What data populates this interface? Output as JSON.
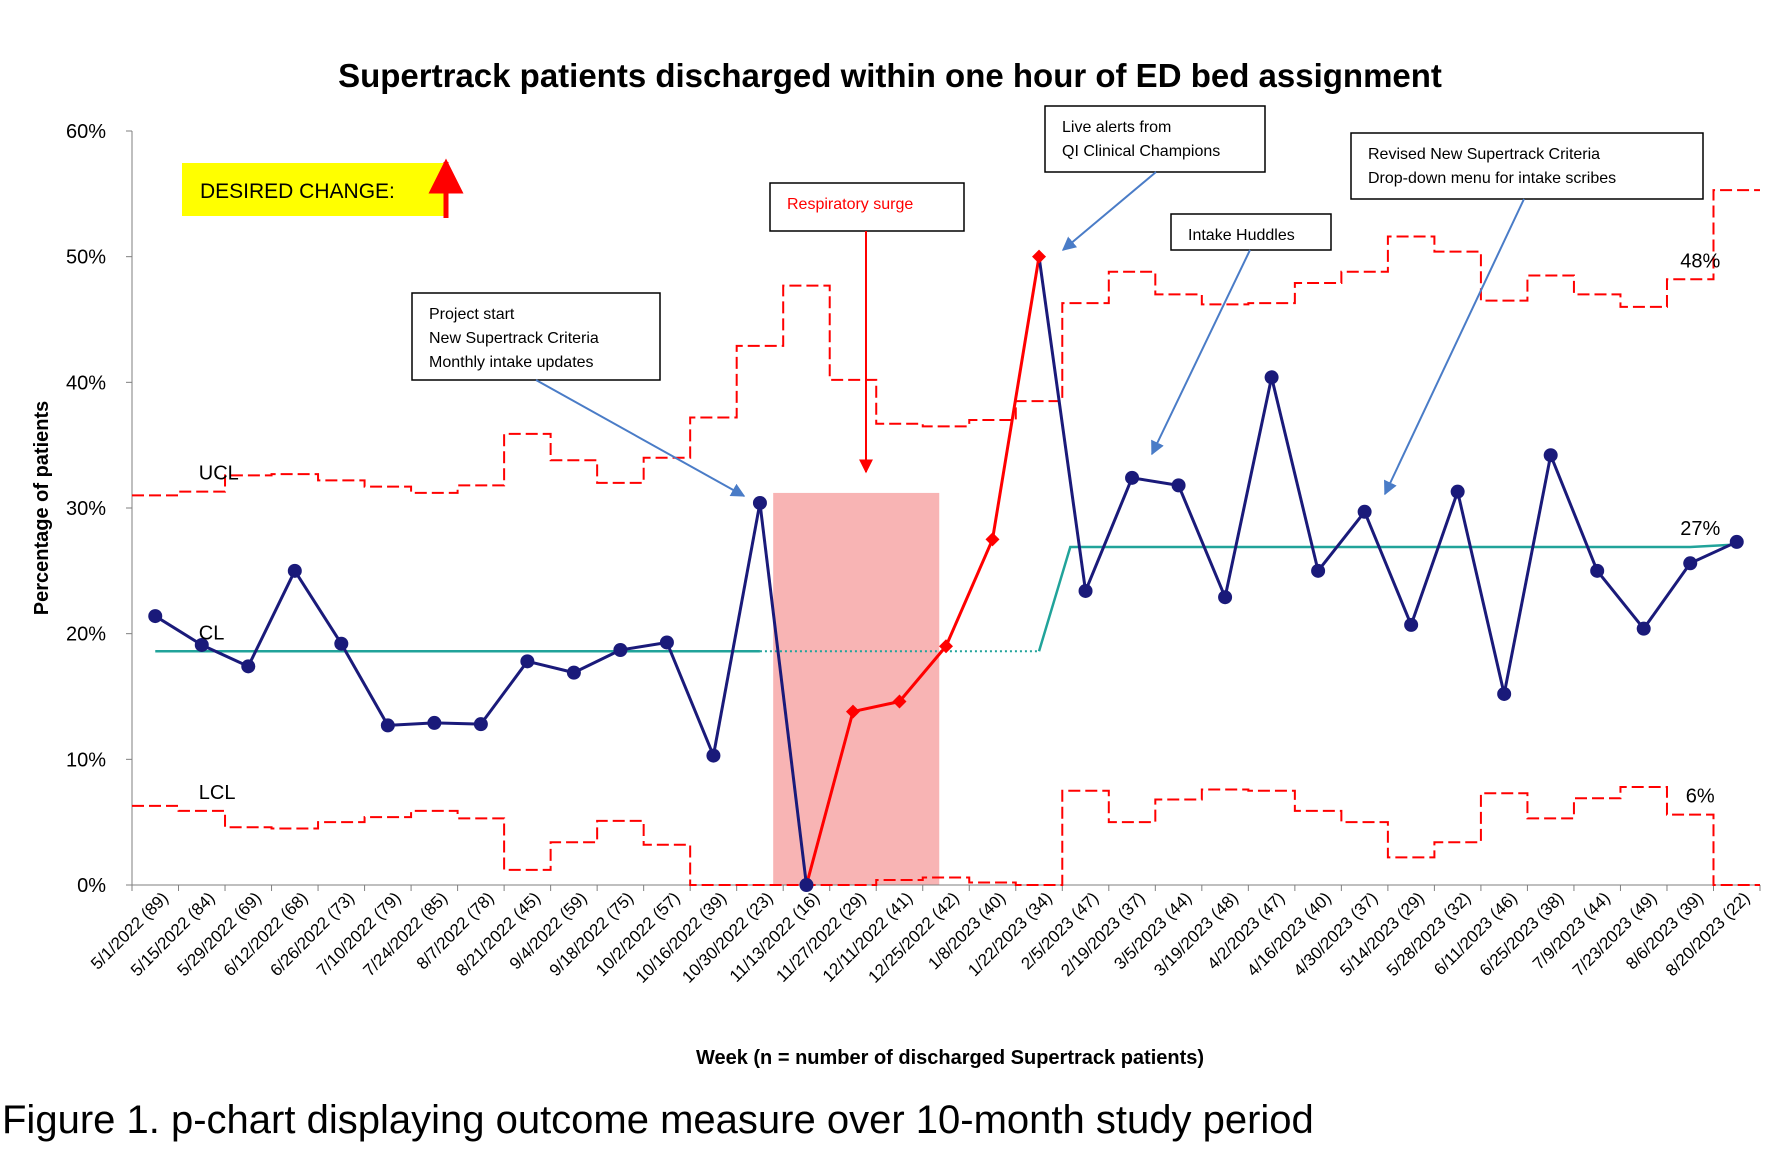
{
  "chart_data": {
    "type": "line",
    "title": "Supertrack patients discharged within one hour of ED bed assignment",
    "xlabel": "Week (n = number of discharged Supertrack patients)",
    "ylabel": "Percentage of patients",
    "ylim": [
      0,
      60
    ],
    "y_ticks": [
      "0%",
      "10%",
      "20%",
      "30%",
      "40%",
      "50%",
      "60%"
    ],
    "categories": [
      "5/1/2022 (89)",
      "5/15/2022 (84)",
      "5/29/2022 (69)",
      "6/12/2022 (68)",
      "6/26/2022 (73)",
      "7/10/2022 (79)",
      "7/24/2022 (85)",
      "8/7/2022 (78)",
      "8/21/2022 (45)",
      "9/4/2022 (59)",
      "9/18/2022 (75)",
      "10/2/2022 (57)",
      "10/16/2022 (39)",
      "10/30/2022 (23)",
      "11/13/2022 (16)",
      "11/27/2022 (29)",
      "12/11/2022 (41)",
      "12/25/2022 (42)",
      "1/8/2023 (40)",
      "1/22/2023 (34)",
      "2/5/2023 (47)",
      "2/19/2023 (37)",
      "3/5/2023 (44)",
      "3/19/2023 (48)",
      "4/2/2023 (47)",
      "4/16/2023 (40)",
      "4/30/2023 (37)",
      "5/14/2023 (29)",
      "5/28/2023 (32)",
      "6/11/2023 (46)",
      "6/25/2023 (38)",
      "7/9/2023 (44)",
      "7/23/2023 (49)",
      "8/6/2023 (39)",
      "8/20/2023 (22)"
    ],
    "series": [
      {
        "values": [
          21.4,
          19.1,
          17.4,
          25.0,
          19.2,
          12.7,
          12.9,
          12.8,
          17.8,
          16.9,
          18.7,
          19.3,
          10.3,
          30.4,
          0.0,
          13.8,
          14.6,
          19.0,
          27.5,
          50.0,
          23.4,
          32.4,
          31.8,
          22.9,
          40.4,
          25.0,
          29.7,
          20.7,
          31.3,
          15.2,
          34.2,
          25.0,
          20.4,
          25.6,
          27.3
        ]
      },
      {
        "values": [
          null,
          null,
          null,
          null,
          null,
          null,
          null,
          null,
          null,
          null,
          null,
          null,
          null,
          null,
          0.0,
          13.8,
          14.6,
          19.0,
          27.5,
          50.0,
          null,
          null,
          null,
          null,
          null,
          null,
          null,
          null,
          null,
          null,
          null,
          null,
          null,
          null,
          null
        ]
      },
      {
        "name": "UCL",
        "values": [
          31.0,
          31.3,
          32.6,
          32.7,
          32.2,
          31.7,
          31.2,
          31.8,
          35.9,
          33.8,
          32.0,
          34.0,
          37.2,
          42.9,
          47.7,
          40.2,
          36.7,
          36.5,
          37.0,
          38.5,
          46.3,
          48.8,
          47.0,
          46.2,
          46.3,
          47.9,
          48.8,
          51.6,
          50.4,
          46.5,
          48.5,
          47.0,
          46.0,
          48.2,
          55.3
        ]
      },
      {
        "name": "LCL",
        "values": [
          6.3,
          5.9,
          4.6,
          4.5,
          5.0,
          5.4,
          5.9,
          5.3,
          1.2,
          3.4,
          5.1,
          3.2,
          0.0,
          0.0,
          0.0,
          0.0,
          0.4,
          0.6,
          0.2,
          0.0,
          7.5,
          5.0,
          6.8,
          7.6,
          7.5,
          5.9,
          5.0,
          2.2,
          3.4,
          7.3,
          5.3,
          6.9,
          7.8,
          5.6,
          0.0
        ]
      },
      {
        "name": "CL",
        "values": [
          18.6,
          18.6,
          18.6,
          18.6,
          18.6,
          18.6,
          18.6,
          18.6,
          18.6,
          18.6,
          18.6,
          18.6,
          18.6,
          18.6,
          18.6,
          18.6,
          18.6,
          18.6,
          18.6,
          18.6,
          26.9,
          26.9,
          26.9,
          26.9,
          26.9,
          26.9,
          26.9,
          26.9,
          26.9,
          26.9,
          26.9,
          26.9,
          26.9,
          26.9,
          27.1
        ]
      }
    ],
    "labels": {
      "ucl": "UCL",
      "cl": "CL",
      "lcl": "LCL",
      "ucl_end": "48%",
      "cl_end": "27%",
      "lcl_end": "6%"
    },
    "desired_change": "DESIRED CHANGE:",
    "annotations": [
      {
        "lines": [
          "Project start",
          "New Supertrack Criteria",
          "Monthly intake updates"
        ]
      },
      {
        "lines": [
          "Respiratory surge"
        ]
      },
      {
        "lines": [
          "Live alerts from",
          "QI Clinical Champions"
        ]
      },
      {
        "lines": [
          "Intake Huddles"
        ]
      },
      {
        "lines": [
          "Revised New Supertrack Criteria",
          "Drop-down menu for intake scribes"
        ]
      }
    ],
    "shaded_period": {
      "from": "11/13/2022 (16)",
      "to": "12/25/2022 (42)",
      "ymax": 31.2
    },
    "colors": {
      "main": "#1a1a7a",
      "surge": "#ff0000",
      "limits": "#ff0000",
      "center": "#21a39a",
      "shade": "#f8b4b4",
      "arrow_blue": "#4a7cc7",
      "highlight": "#ffff00"
    }
  },
  "caption": "Figure 1. p-chart displaying outcome measure over 10-month study period"
}
